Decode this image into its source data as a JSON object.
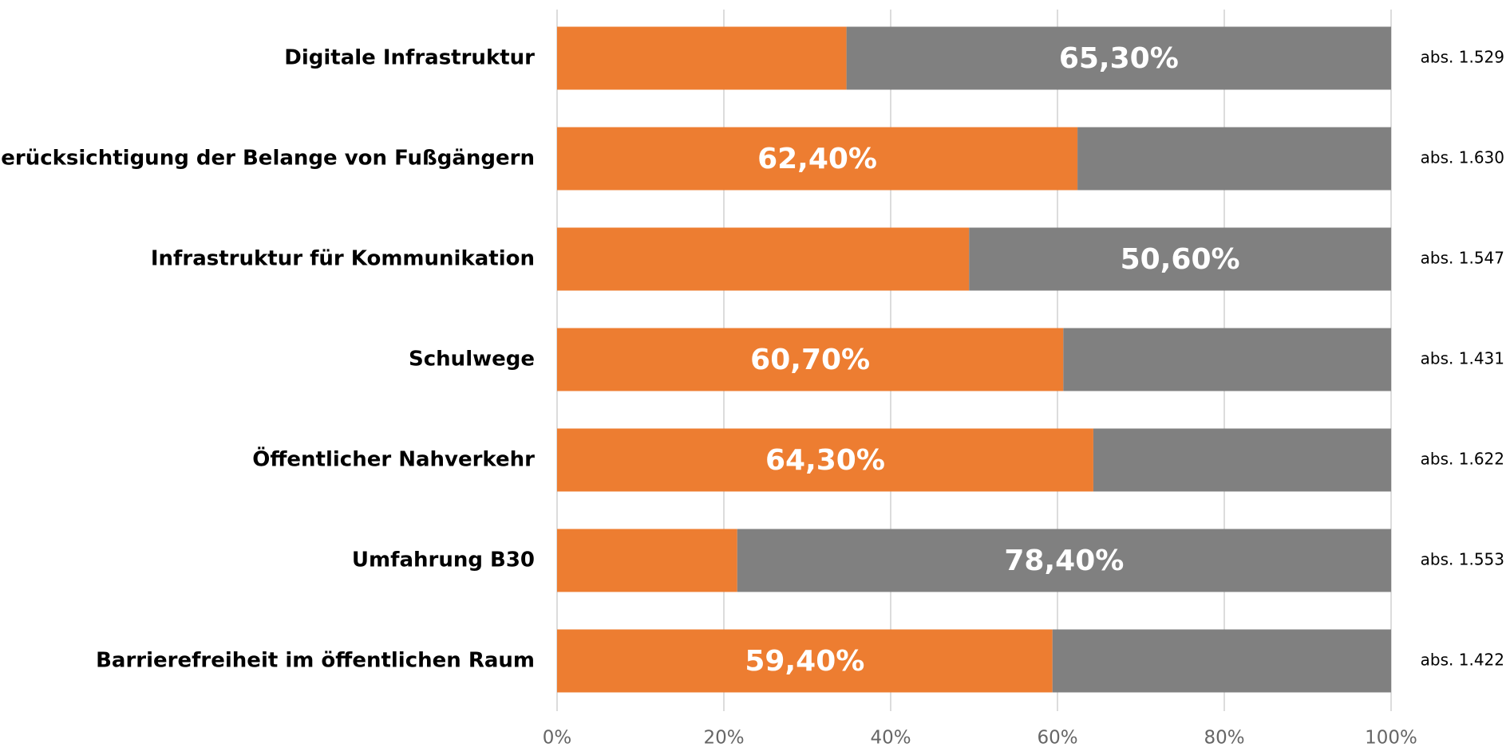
{
  "chart_data": {
    "type": "stacked_barh",
    "categories": [
      "Digitale Infrastruktur",
      "Berücksichtigung der Belange von Fußgängern",
      "Infrastruktur für Kommunikation",
      "Schulwege",
      "Öffentlicher Nahverkehr",
      "Umfahrung B30",
      "Barrierefreiheit im öffentlichen Raum"
    ],
    "series": [
      {
        "color": "#ED7D31",
        "values": [
          34.7,
          62.4,
          49.4,
          60.7,
          64.3,
          21.6,
          59.4
        ],
        "value_labels": [
          null,
          "62,40%",
          null,
          "60,70%",
          "64,30%",
          null,
          "59,40%"
        ]
      },
      {
        "color": "#808080",
        "values": [
          65.3,
          37.6,
          50.6,
          39.3,
          35.7,
          78.4,
          40.6
        ],
        "value_labels": [
          "65,30%",
          null,
          "50,60%",
          null,
          null,
          "78,40%",
          null
        ]
      }
    ],
    "row_annotations": [
      "abs. 1.529",
      "abs. 1.630",
      "abs. 1.547",
      "abs. 1.431",
      "abs. 1.622",
      "abs. 1.553",
      "abs. 1.422"
    ],
    "xlim": [
      0,
      100
    ],
    "xticks": [
      {
        "value": 0,
        "label": "0%"
      },
      {
        "value": 20,
        "label": "20%"
      },
      {
        "value": 40,
        "label": "40%"
      },
      {
        "value": 60,
        "label": "60%"
      },
      {
        "value": 80,
        "label": "80%"
      },
      {
        "value": 100,
        "label": "100%"
      }
    ],
    "grid": true
  }
}
